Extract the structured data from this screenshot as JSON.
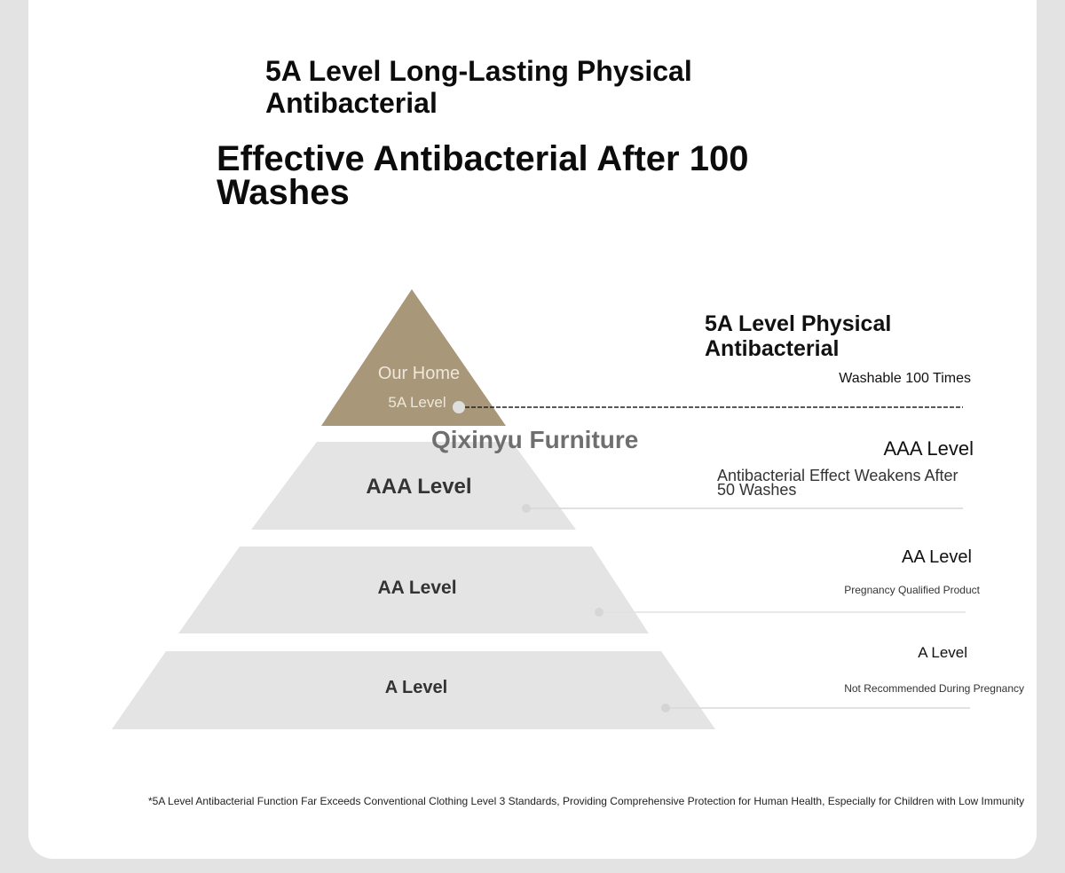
{
  "heading": {
    "line1": "5A Level Long-Lasting Physical Antibacterial",
    "line2": "Effective Antibacterial After 100 Washes"
  },
  "pyramid": {
    "top": {
      "label_line1": "Our Home",
      "label_line2": "5A Level",
      "color": "#a89778"
    },
    "tier2": {
      "label": "AAA Level",
      "color": "#e3e3e3"
    },
    "tier3": {
      "label": "AA Level",
      "color": "#e3e3e3"
    },
    "tier4": {
      "label": "A Level",
      "color": "#e3e3e3"
    },
    "brand": "Qixinyu Furniture"
  },
  "legend": [
    {
      "title": "5A Level Physical Antibacterial",
      "desc": "Washable 100 Times"
    },
    {
      "title": "AAA Level",
      "desc": "Antibacterial Effect Weakens After 50 Washes"
    },
    {
      "title": "AA Level",
      "desc": "Pregnancy Qualified Product"
    },
    {
      "title": "A Level",
      "desc": "Not Recommended During Pregnancy"
    }
  ],
  "footnote": "*5A Level Antibacterial Function Far Exceeds Conventional Clothing Level 3 Standards, Providing Comprehensive Protection for Human Health, Especially for Children with Low Immunity"
}
